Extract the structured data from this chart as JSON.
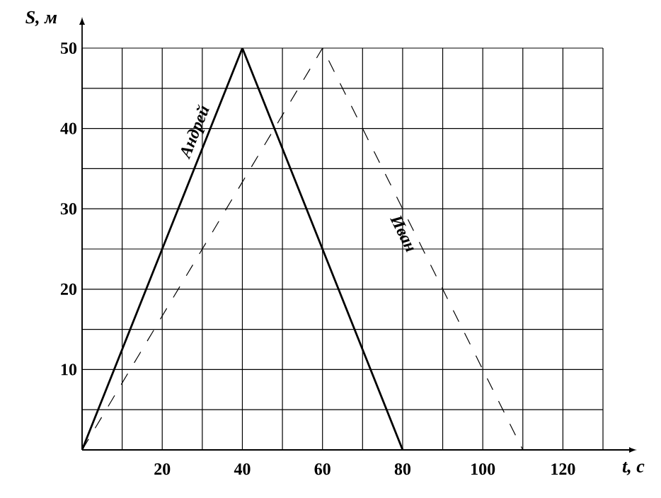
{
  "chart_data": {
    "type": "line",
    "xlabel": "t, с",
    "ylabel": "S, м",
    "xlim": [
      0,
      130
    ],
    "ylim": [
      0,
      50
    ],
    "xticks": [
      {
        "value": 0,
        "label": null
      },
      {
        "value": 10,
        "label": null
      },
      20,
      {
        "value": 30,
        "label": null
      },
      40,
      {
        "value": 50,
        "label": null
      },
      60,
      {
        "value": 70,
        "label": null
      },
      80,
      {
        "value": 90,
        "label": null
      },
      100,
      {
        "value": 110,
        "label": null
      },
      120,
      {
        "value": 130,
        "label": null
      }
    ],
    "yticks": [
      {
        "value": 0,
        "label": null
      },
      {
        "value": 5,
        "label": null
      },
      10,
      {
        "value": 15,
        "label": null
      },
      20,
      {
        "value": 25,
        "label": null
      },
      30,
      {
        "value": 35,
        "label": null
      },
      40,
      {
        "value": 45,
        "label": null
      },
      50
    ],
    "grid": true,
    "marker": "none",
    "series": [
      {
        "name": "Андрей",
        "color": "#000000",
        "line_style": "solid",
        "x": [
          0,
          40,
          80
        ],
        "values": [
          0,
          50,
          0
        ]
      },
      {
        "name": "Иван",
        "color": "#000000",
        "line_style": "dashed",
        "x": [
          0,
          60,
          110
        ],
        "values": [
          0,
          50,
          0
        ]
      }
    ]
  }
}
